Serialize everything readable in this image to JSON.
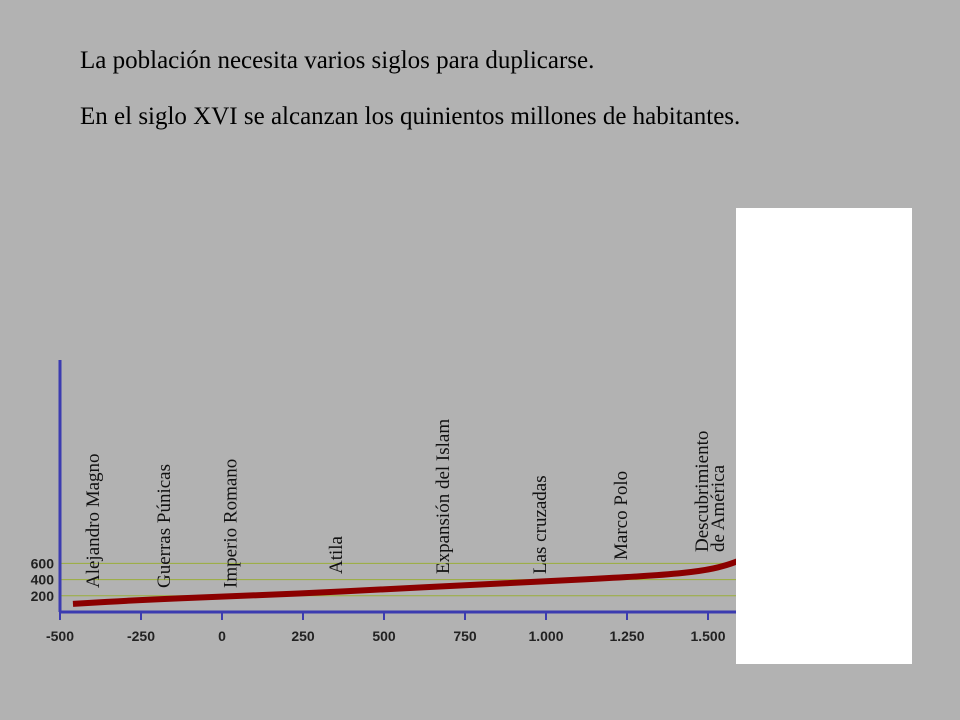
{
  "header": {
    "line1": "La población necesita varios siglos para duplicarse.",
    "line2": "En el siglo XVI se alcanzan los quinientos millones de habitantes."
  },
  "chart_data": {
    "type": "line",
    "title": "",
    "xlabel": "",
    "ylabel": "",
    "xlim": [
      -500,
      1650
    ],
    "ylim": [
      0,
      1000
    ],
    "grid": "horizontal",
    "x_ticks": [
      -500,
      -250,
      0,
      250,
      500,
      750,
      1000,
      1250,
      1500
    ],
    "x_tick_labels": [
      "-500",
      "-250",
      "0",
      "250",
      "500",
      "750",
      "1.000",
      "1.250",
      "1.500"
    ],
    "y_ticks": [
      200,
      400,
      600
    ],
    "y_tick_labels": [
      "200",
      "400",
      "600"
    ],
    "series": [
      {
        "color": "#8b0000",
        "x": [
          -460,
          -250,
          0,
          250,
          500,
          750,
          1000,
          1250,
          1400,
          1500,
          1560,
          1600
        ],
        "y": [
          100,
          150,
          190,
          230,
          280,
          330,
          380,
          430,
          470,
          520,
          580,
          640
        ]
      }
    ],
    "annotations": [
      {
        "text": "Alejandro Magno",
        "x": -380,
        "anchor_y": 360
      },
      {
        "text": "Guerras Púnicas",
        "x": -160,
        "anchor_y": 480
      },
      {
        "text": "Imperio Romano",
        "x": 45,
        "anchor_y": 570
      },
      {
        "text": "Atila",
        "x": 370,
        "anchor_y": 570
      },
      {
        "text": "Expansión del Islam",
        "x": 700,
        "anchor_y": 570
      },
      {
        "text": "Las cruzadas",
        "x": 1000,
        "anchor_y": 580
      },
      {
        "text": "Marco Polo",
        "x": 1250,
        "anchor_y": 750
      },
      {
        "text": "Descubrimiento",
        "x": 1500,
        "anchor_y": 1000
      },
      {
        "text": "de América",
        "x": 1550,
        "anchor_y": 1000
      }
    ],
    "colors": {
      "axis": "#3b3bb0",
      "grid": "#9aae3a",
      "line": "#8b0000"
    }
  }
}
